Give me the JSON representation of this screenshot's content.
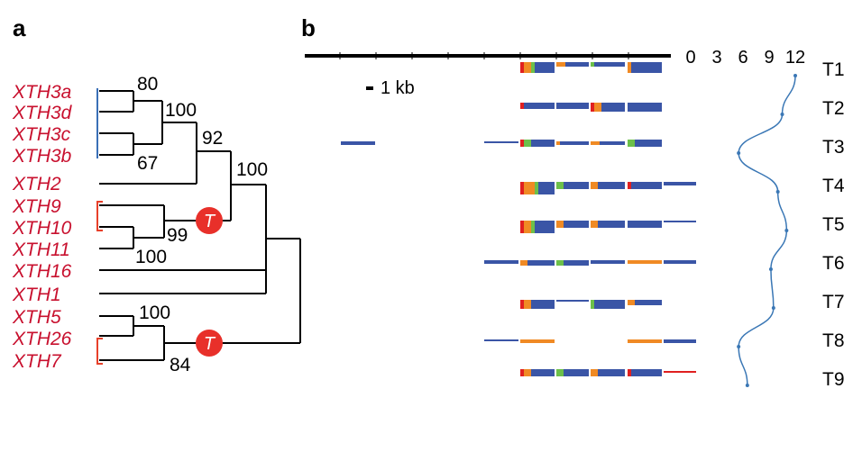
{
  "panels": {
    "a": "a",
    "b": "b"
  },
  "tree": {
    "taxa": [
      "XTH3a",
      "XTH3d",
      "XTH3c",
      "XTH3b",
      "XTH2",
      "XTH9",
      "XTH10",
      "XTH11",
      "XTH16",
      "XTH1",
      "XTH5",
      "XTH26",
      "XTH7"
    ],
    "bootstrap": [
      "80",
      "100",
      "67",
      "92",
      "100",
      "99",
      "100",
      "100",
      "84"
    ],
    "markers": [
      "T",
      "T"
    ],
    "colors": {
      "taxon": "#c8102e",
      "blue_bracket": "#3a6fb7",
      "red_bracket": "#e8402a",
      "marker": "#e8302a"
    }
  },
  "gene_structure": {
    "scale_label": "1 kb",
    "tracks": [
      "T1",
      "T2",
      "T3",
      "T4",
      "T5",
      "T6",
      "T7",
      "T8",
      "T9"
    ],
    "colors": {
      "blue": "#3a55a6",
      "orange": "#f08a24",
      "green": "#6cc04a",
      "red": "#e02020"
    }
  },
  "expression_axis": {
    "ticks": [
      "0",
      "3",
      "6",
      "9",
      "12"
    ],
    "values": [
      12,
      10.5,
      5.5,
      10,
      11,
      9.2,
      9.5,
      5.5,
      6.5
    ],
    "curve_color": "#3a77b5"
  }
}
